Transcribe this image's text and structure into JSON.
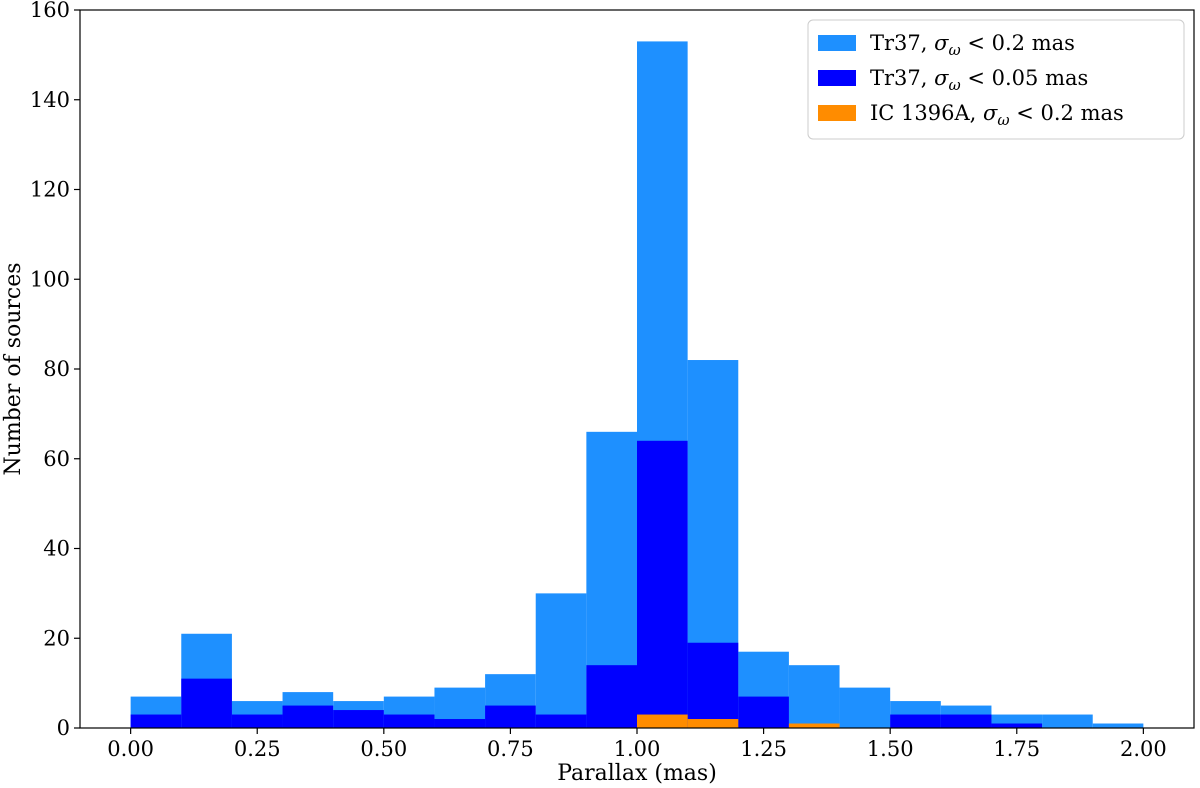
{
  "chart_data": {
    "type": "bar",
    "subtype": "histogram-overlay",
    "xlabel": "Parallax (mas)",
    "ylabel": "Number of sources",
    "xlim": [
      -0.1,
      2.1
    ],
    "ylim": [
      0,
      160
    ],
    "bin_edges": [
      0.0,
      0.1,
      0.2,
      0.3,
      0.4,
      0.5,
      0.6,
      0.7,
      0.8,
      0.9,
      1.0,
      1.1,
      1.2,
      1.3,
      1.4,
      1.5,
      1.6,
      1.7,
      1.8,
      1.9,
      2.0
    ],
    "x_ticks": [
      0.0,
      0.25,
      0.5,
      0.75,
      1.0,
      1.25,
      1.5,
      1.75,
      2.0
    ],
    "x_tick_labels": [
      "0.00",
      "0.25",
      "0.50",
      "0.75",
      "1.00",
      "1.25",
      "1.50",
      "1.75",
      "2.00"
    ],
    "y_ticks": [
      0,
      20,
      40,
      60,
      80,
      100,
      120,
      140,
      160
    ],
    "y_tick_labels": [
      "0",
      "20",
      "40",
      "60",
      "80",
      "100",
      "120",
      "140",
      "160"
    ],
    "grid": false,
    "legend_position": "top-right",
    "series": [
      {
        "name": "Tr37, σω < 0.2 mas",
        "legend": {
          "prefix": "Tr37, ",
          "sigma": "σ",
          "sub": "ω",
          "suffix": " < 0.2 mas"
        },
        "color": "#1e90ff",
        "values": [
          7,
          21,
          6,
          8,
          6,
          7,
          9,
          12,
          30,
          66,
          153,
          82,
          17,
          14,
          9,
          6,
          5,
          3,
          3,
          1
        ]
      },
      {
        "name": "Tr37, σω < 0.05 mas",
        "legend": {
          "prefix": "Tr37, ",
          "sigma": "σ",
          "sub": "ω",
          "suffix": " < 0.05 mas"
        },
        "color": "#0000ff",
        "values": [
          3,
          11,
          3,
          5,
          4,
          3,
          2,
          5,
          3,
          14,
          64,
          19,
          7,
          0,
          0,
          3,
          3,
          1,
          0,
          0
        ]
      },
      {
        "name": "IC 1396A, σω < 0.2 mas",
        "legend": {
          "prefix": "IC 1396A, ",
          "sigma": "σ",
          "sub": "ω",
          "suffix": " < 0.2 mas"
        },
        "color": "#ff8c00",
        "values": [
          0,
          0,
          0,
          0,
          0,
          0,
          0,
          0,
          0,
          0,
          3,
          2,
          0,
          1,
          0,
          0,
          0,
          0,
          0,
          0
        ]
      }
    ]
  }
}
